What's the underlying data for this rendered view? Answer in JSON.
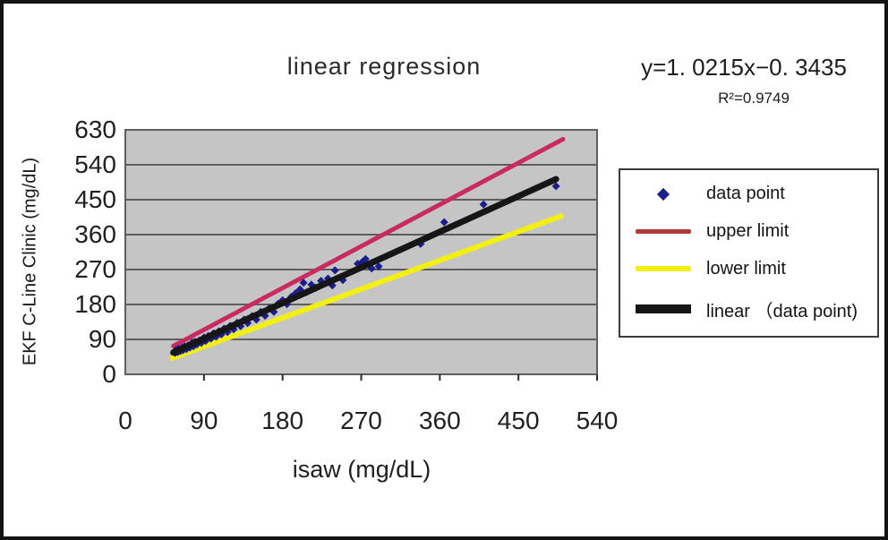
{
  "title": "linear regression",
  "equation": {
    "formula": "y=1. 0215x−0. 3435",
    "r_squared": "R²=0.9749"
  },
  "chart_data": {
    "type": "scatter",
    "title": "linear regression",
    "xlabel": "isaw (mg/dL)",
    "ylabel": "EKF C-Line Clinic (mg/dL)",
    "xlim": [
      0,
      540
    ],
    "ylim": [
      0,
      630
    ],
    "xticks": [
      0,
      90,
      180,
      270,
      360,
      450,
      540
    ],
    "yticks": [
      0,
      90,
      180,
      270,
      360,
      450,
      540,
      630
    ],
    "grid": "horizontal-only",
    "legend_position": "right",
    "plot_background": "#c5c5c5",
    "gridline_color": "#5e5e5e",
    "annotation": "y=1. 0215x−0. 3435  R²=0.9749",
    "regression": {
      "slope": 1.0215,
      "intercept": -0.3435,
      "r2": 0.9749
    },
    "series": [
      {
        "name": "data point",
        "type": "scatter",
        "marker": "diamond",
        "color": "#1b1d8a",
        "points": [
          [
            57,
            55
          ],
          [
            58,
            63
          ],
          [
            60,
            57
          ],
          [
            61,
            66
          ],
          [
            63,
            60
          ],
          [
            65,
            69
          ],
          [
            66,
            62
          ],
          [
            68,
            72
          ],
          [
            70,
            65
          ],
          [
            72,
            75
          ],
          [
            74,
            69
          ],
          [
            76,
            80
          ],
          [
            78,
            72
          ],
          [
            80,
            84
          ],
          [
            82,
            77
          ],
          [
            85,
            88
          ],
          [
            87,
            81
          ],
          [
            90,
            95
          ],
          [
            92,
            86
          ],
          [
            95,
            99
          ],
          [
            98,
            92
          ],
          [
            101,
            106
          ],
          [
            104,
            97
          ],
          [
            107,
            111
          ],
          [
            110,
            103
          ],
          [
            113,
            118
          ],
          [
            117,
            109
          ],
          [
            120,
            125
          ],
          [
            124,
            116
          ],
          [
            128,
            133
          ],
          [
            132,
            124
          ],
          [
            136,
            141
          ],
          [
            140,
            132
          ],
          [
            145,
            150
          ],
          [
            150,
            141
          ],
          [
            155,
            161
          ],
          [
            160,
            151
          ],
          [
            165,
            171
          ],
          [
            170,
            161
          ],
          [
            175,
            182
          ],
          [
            180,
            191
          ],
          [
            185,
            181
          ],
          [
            190,
            200
          ],
          [
            195,
            209
          ],
          [
            200,
            219
          ],
          [
            204,
            236
          ],
          [
            208,
            212
          ],
          [
            213,
            231
          ],
          [
            218,
            223
          ],
          [
            224,
            241
          ],
          [
            232,
            247
          ],
          [
            237,
            229
          ],
          [
            240,
            268
          ],
          [
            249,
            243
          ],
          [
            266,
            285
          ],
          [
            271,
            289
          ],
          [
            275,
            297
          ],
          [
            282,
            273
          ],
          [
            290,
            278
          ],
          [
            338,
            336
          ],
          [
            365,
            392
          ],
          [
            410,
            438
          ],
          [
            493,
            485
          ]
        ]
      },
      {
        "name": "upper limit",
        "type": "line",
        "color": "#c92b60",
        "legend_color": "#b23a3a",
        "width": 5,
        "points": [
          [
            55,
            73
          ],
          [
            501,
            606
          ]
        ]
      },
      {
        "name": "lower limit",
        "type": "line",
        "color": "#f3ef12",
        "legend_color": "#f3ef12",
        "width": 6,
        "points": [
          [
            54,
            42
          ],
          [
            499,
            408
          ]
        ]
      },
      {
        "name": "linear （data point)",
        "type": "line",
        "color": "#161616",
        "legend_color": "#161616",
        "width": 7,
        "points": [
          [
            55,
            56
          ],
          [
            493,
            503
          ]
        ]
      }
    ]
  }
}
